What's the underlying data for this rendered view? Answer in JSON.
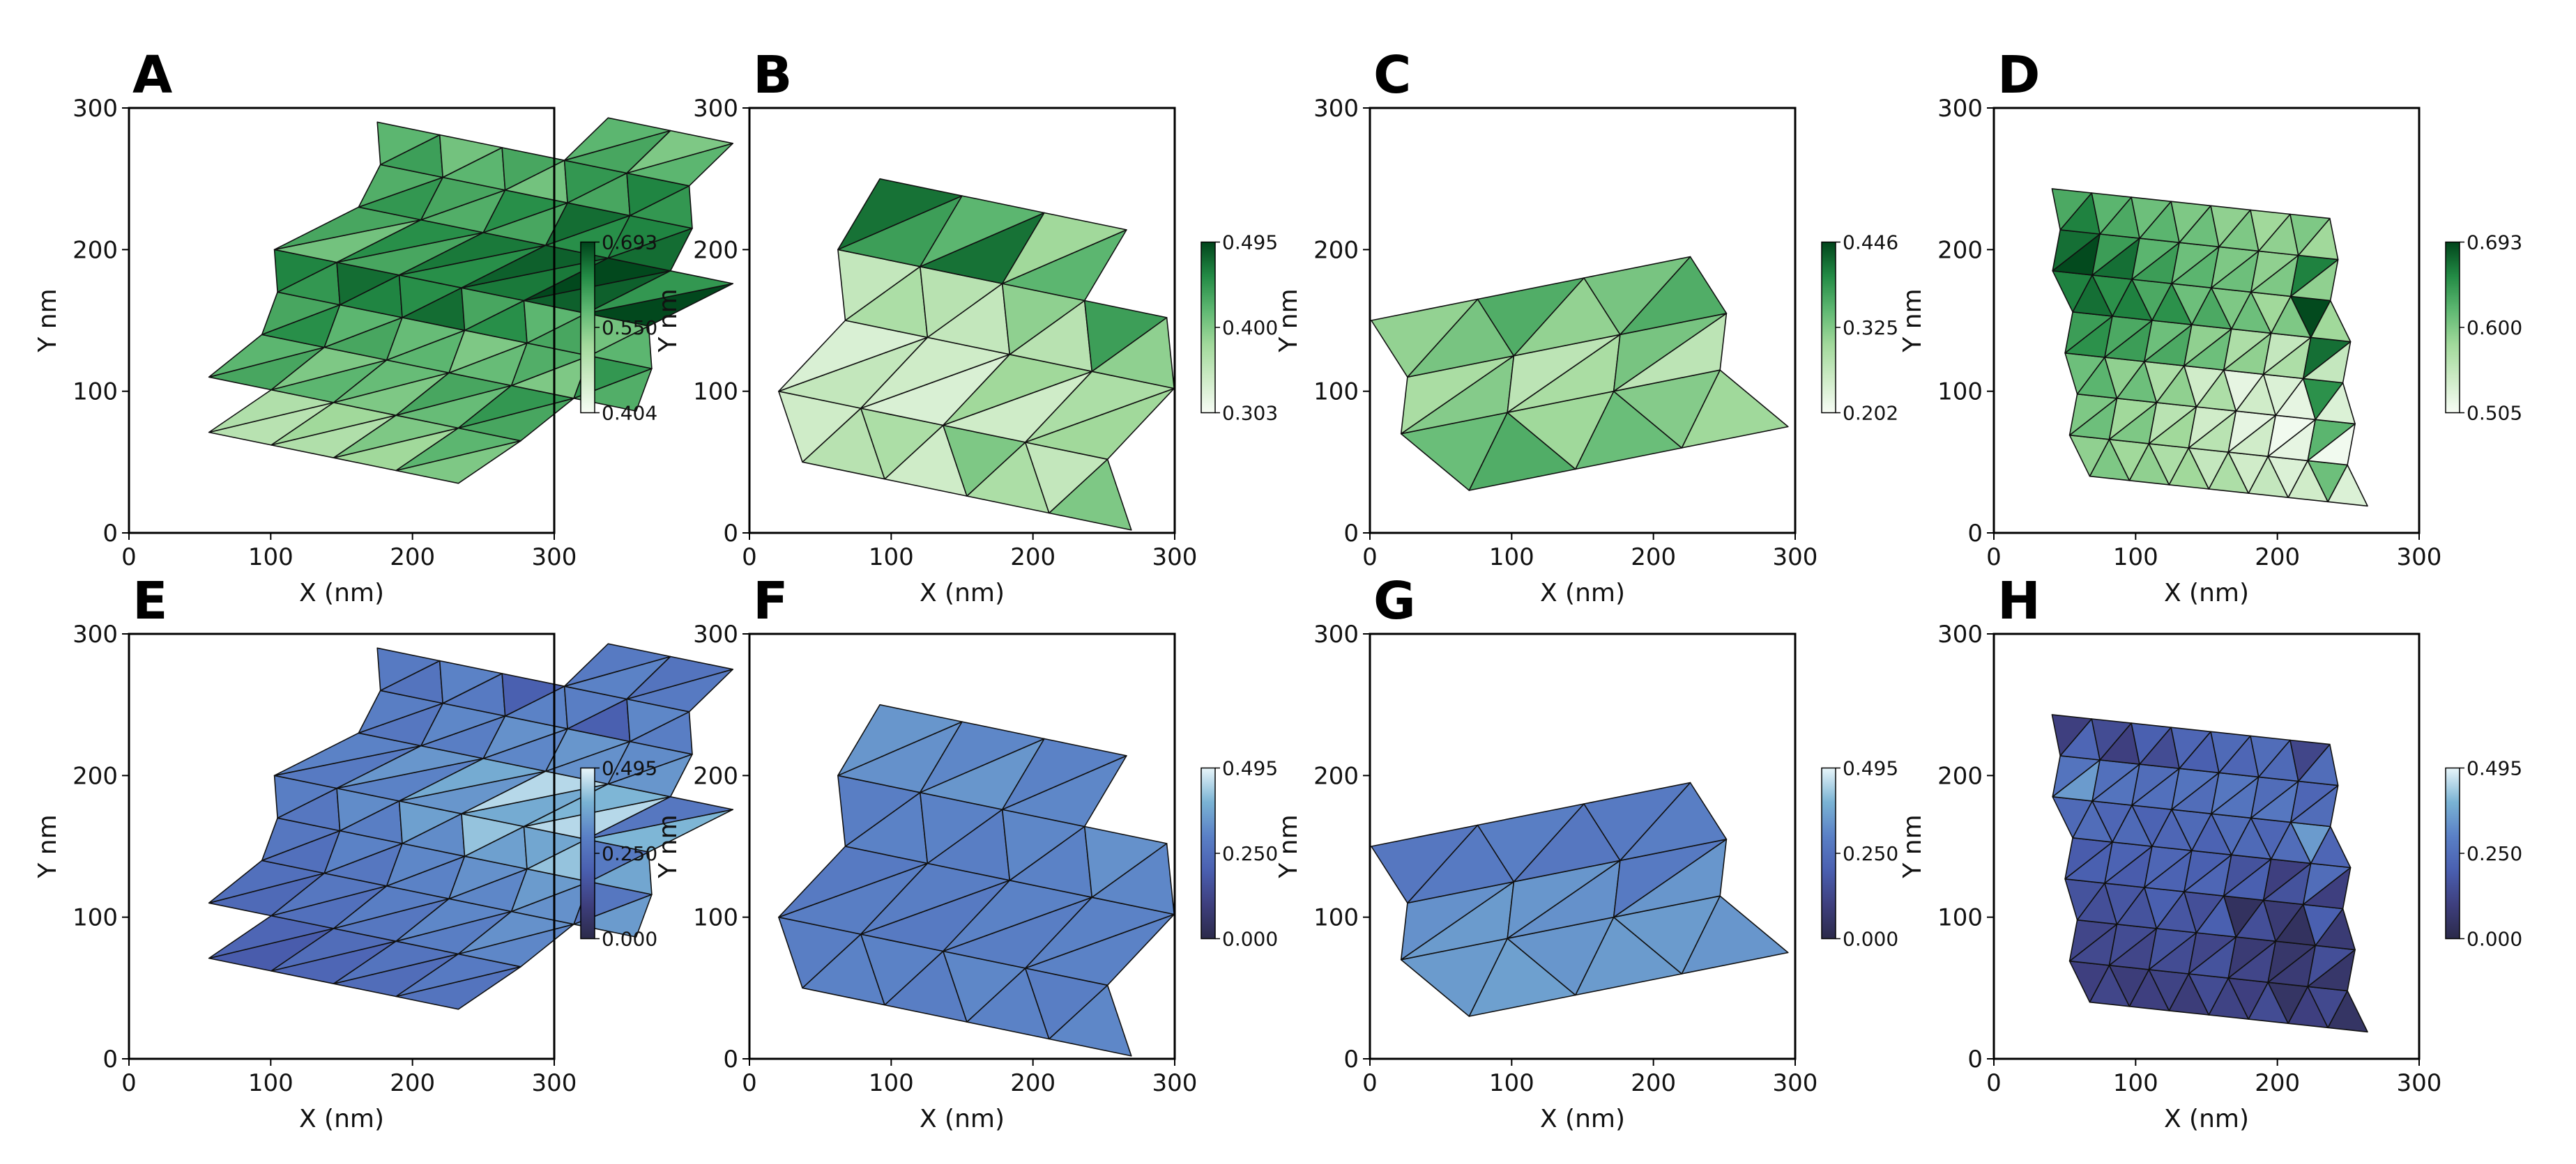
{
  "colors": {
    "green_map": [
      "#f7fcf5",
      "#cdebc6",
      "#a1d99b",
      "#5fb872",
      "#238b45",
      "#00441b"
    ],
    "blue_map": [
      "#2b2a4a",
      "#3e3f7e",
      "#4a5fb0",
      "#5a80c6",
      "#7ab3d4",
      "#e8f6fa"
    ],
    "edge": "#111111"
  },
  "chart_data": [
    {
      "panel": "A",
      "type": "heatmap",
      "xlabel": "X (nm)",
      "ylabel": "Y nm",
      "xlim": [
        0,
        300
      ],
      "ylim": [
        0,
        300
      ],
      "xticks": [
        "0",
        "100",
        "200",
        "300"
      ],
      "yticks": [
        "0",
        "100",
        "200",
        "300"
      ],
      "colorbar": {
        "ticks": [
          "0.404",
          "0.550",
          "0.693"
        ],
        "min": 0.404,
        "max": 0.693,
        "cmap": "green"
      },
      "mesh": {
        "origin": [
          30,
          80
        ],
        "ex": [
          44,
          -9
        ],
        "ey": [
          22,
          30
        ],
        "rows": 8,
        "cols": 6,
        "shear": [
          -0.4,
          0.1,
          0.45,
          0.2,
          -0.35,
          0.5,
          0.35,
          -0.2
        ],
        "skip": [
          [
            0,
            0
          ],
          [
            0,
            5
          ],
          [
            1,
            5
          ],
          [
            6,
            5
          ],
          [
            7,
            0
          ],
          [
            7,
            1
          ],
          [
            7,
            2
          ],
          [
            7,
            5
          ],
          [
            5,
            5
          ]
        ]
      },
      "values": [
        0.46,
        0.49,
        0.5,
        0.52,
        0.55,
        0.58,
        0.6,
        0.58,
        0.55,
        0.57,
        0.6,
        0.62,
        0.63,
        0.6,
        0.58,
        0.57,
        0.55,
        0.59,
        0.62,
        0.64,
        0.66,
        0.63,
        0.6,
        0.58,
        0.56,
        0.6,
        0.63,
        0.65,
        0.67,
        0.69,
        0.62,
        0.59,
        0.6,
        0.63,
        0.66,
        0.64,
        0.61,
        0.58,
        0.56,
        0.6,
        0.62,
        0.64,
        0.65,
        0.66,
        0.63,
        0.6,
        0.58,
        0.55
      ]
    },
    {
      "panel": "B",
      "type": "heatmap",
      "xlabel": "X (nm)",
      "ylabel": "Y nm",
      "xlim": [
        0,
        300
      ],
      "ylim": [
        0,
        300
      ],
      "xticks": [
        "0",
        "100",
        "200",
        "300"
      ],
      "yticks": [
        "0",
        "100",
        "200",
        "300"
      ],
      "colorbar": {
        "ticks": [
          "0.303",
          "0.400",
          "0.495"
        ],
        "min": 0.303,
        "max": 0.495,
        "cmap": "green"
      },
      "mesh": {
        "origin": [
          20,
          50
        ],
        "ex": [
          58,
          -12
        ],
        "ey": [
          18,
          50
        ],
        "rows": 4,
        "cols": 4,
        "shear": [
          0.3,
          -0.3,
          0.2,
          -0.2
        ],
        "skip": [
          [
            3,
            3
          ]
        ]
      },
      "values": [
        0.36,
        0.34,
        0.37,
        0.4,
        0.35,
        0.33,
        0.34,
        0.38,
        0.37,
        0.35,
        0.36,
        0.39,
        0.44,
        0.47,
        0.42,
        0.38,
        0.36,
        0.34,
        0.37,
        0.39,
        0.33,
        0.35,
        0.38,
        0.4,
        0.36,
        0.38,
        0.42,
        0.45,
        0.4,
        0.43,
        0.37,
        0.35
      ]
    },
    {
      "panel": "C",
      "type": "heatmap",
      "xlabel": "X (nm)",
      "ylabel": "Y nm",
      "xlim": [
        0,
        300
      ],
      "ylim": [
        0,
        300
      ],
      "xticks": [
        "0",
        "100",
        "200",
        "300"
      ],
      "yticks": [
        "0",
        "100",
        "200",
        "300"
      ],
      "colorbar": {
        "ticks": [
          "0.202",
          "0.325",
          "0.446"
        ],
        "min": 0.202,
        "max": 0.446,
        "cmap": "green"
      },
      "mesh": {
        "origin": [
          55,
          30
        ],
        "ex": [
          75,
          15
        ],
        "ey": [
          -18,
          40
        ],
        "rows": 3,
        "cols": 3,
        "shear": [
          0.2,
          -0.2,
          0.1
        ],
        "skip": []
      },
      "values": [
        0.36,
        0.34,
        0.3,
        0.32,
        0.29,
        0.27,
        0.33,
        0.31,
        0.36,
        0.33,
        0.3,
        0.28,
        0.31,
        0.29,
        0.34,
        0.32,
        0.3,
        0.28
      ]
    },
    {
      "panel": "D",
      "type": "heatmap",
      "xlabel": "X (nm)",
      "ylabel": "Y nm",
      "xlim": [
        0,
        300
      ],
      "ylim": [
        0,
        300
      ],
      "xticks": [
        "0",
        "100",
        "200",
        "300"
      ],
      "yticks": [
        "0",
        "100",
        "200",
        "300"
      ],
      "colorbar": {
        "ticks": [
          "0.505",
          "0.600",
          "0.693"
        ],
        "min": 0.505,
        "max": 0.693,
        "cmap": "green"
      },
      "mesh": {
        "origin": [
          62,
          40
        ],
        "ex": [
          28,
          -3
        ],
        "ey": [
          -3,
          29
        ],
        "rows": 7,
        "cols": 7,
        "shear": [
          0.2,
          -0.2,
          0.1,
          -0.1,
          0.2,
          -0.2,
          0.1
        ],
        "skip": []
      },
      "values": [
        0.6,
        0.59,
        0.58,
        0.57,
        0.55,
        0.54,
        0.53,
        0.61,
        0.6,
        0.58,
        0.56,
        0.54,
        0.52,
        0.51,
        0.62,
        0.61,
        0.59,
        0.57,
        0.54,
        0.52,
        0.53,
        0.65,
        0.64,
        0.63,
        0.61,
        0.59,
        0.57,
        0.55,
        0.67,
        0.66,
        0.65,
        0.63,
        0.61,
        0.6,
        0.58,
        0.69,
        0.67,
        0.64,
        0.62,
        0.61,
        0.6,
        0.59,
        0.66,
        0.63,
        0.62,
        0.61,
        0.6,
        0.59,
        0.58
      ]
    },
    {
      "panel": "E",
      "type": "heatmap",
      "xlabel": "X (nm)",
      "ylabel": "Y nm",
      "xlim": [
        0,
        300
      ],
      "ylim": [
        0,
        300
      ],
      "xticks": [
        "0",
        "100",
        "200",
        "300"
      ],
      "yticks": [
        "0",
        "100",
        "200",
        "300"
      ],
      "colorbar": {
        "ticks": [
          "0.000",
          "0.250",
          "0.495"
        ],
        "min": 0.0,
        "max": 0.495,
        "cmap": "blue"
      },
      "mesh": {
        "origin": [
          30,
          80
        ],
        "ex": [
          44,
          -9
        ],
        "ey": [
          22,
          30
        ],
        "rows": 8,
        "cols": 6,
        "shear": [
          -0.4,
          0.1,
          0.45,
          0.2,
          -0.35,
          0.5,
          0.35,
          -0.2
        ],
        "skip": [
          [
            0,
            0
          ],
          [
            0,
            5
          ],
          [
            1,
            5
          ],
          [
            6,
            5
          ],
          [
            7,
            0
          ],
          [
            7,
            1
          ],
          [
            7,
            2
          ],
          [
            7,
            5
          ],
          [
            5,
            5
          ]
        ]
      },
      "values": [
        0.16,
        0.19,
        0.22,
        0.24,
        0.26,
        0.28,
        0.23,
        0.25,
        0.27,
        0.29,
        0.31,
        0.33,
        0.25,
        0.27,
        0.3,
        0.31,
        0.33,
        0.35,
        0.27,
        0.29,
        0.32,
        0.36,
        0.42,
        0.37,
        0.28,
        0.3,
        0.34,
        0.38,
        0.45,
        0.4,
        0.27,
        0.29,
        0.31,
        0.33,
        0.34,
        0.32,
        0.26,
        0.28,
        0.3,
        0.2,
        0.29,
        0.31,
        0.27,
        0.29,
        0.31,
        0.3,
        0.28,
        0.26
      ]
    },
    {
      "panel": "F",
      "type": "heatmap",
      "xlabel": "X (nm)",
      "ylabel": "Y nm",
      "xlim": [
        0,
        300
      ],
      "ylim": [
        0,
        300
      ],
      "xticks": [
        "0",
        "100",
        "200",
        "300"
      ],
      "yticks": [
        "0",
        "100",
        "200",
        "300"
      ],
      "colorbar": {
        "ticks": [
          "0.000",
          "0.250",
          "0.495"
        ],
        "min": 0.0,
        "max": 0.495,
        "cmap": "blue"
      },
      "mesh": {
        "origin": [
          20,
          50
        ],
        "ex": [
          58,
          -12
        ],
        "ey": [
          18,
          50
        ],
        "rows": 4,
        "cols": 4,
        "shear": [
          0.3,
          -0.3,
          0.2,
          -0.2
        ],
        "skip": [
          [
            3,
            3
          ]
        ]
      },
      "values": [
        0.3,
        0.29,
        0.3,
        0.31,
        0.29,
        0.28,
        0.29,
        0.3,
        0.3,
        0.29,
        0.3,
        0.31,
        0.33,
        0.34,
        0.31,
        0.3,
        0.29,
        0.28,
        0.3,
        0.31,
        0.28,
        0.29,
        0.3,
        0.31,
        0.29,
        0.3,
        0.32,
        0.33,
        0.31,
        0.32,
        0.3,
        0.29
      ]
    },
    {
      "panel": "G",
      "type": "heatmap",
      "xlabel": "X (nm)",
      "ylabel": "Y nm",
      "xlim": [
        0,
        300
      ],
      "ylim": [
        0,
        300
      ],
      "xticks": [
        "0",
        "100",
        "200",
        "300"
      ],
      "yticks": [
        "0",
        "100",
        "200",
        "300"
      ],
      "colorbar": {
        "ticks": [
          "0.000",
          "0.250",
          "0.495"
        ],
        "min": 0.0,
        "max": 0.495,
        "cmap": "blue"
      },
      "mesh": {
        "origin": [
          55,
          30
        ],
        "ex": [
          75,
          15
        ],
        "ey": [
          -18,
          40
        ],
        "rows": 3,
        "cols": 3,
        "shear": [
          0.2,
          -0.2,
          0.1
        ],
        "skip": []
      },
      "values": [
        0.36,
        0.35,
        0.34,
        0.35,
        0.33,
        0.34,
        0.28,
        0.27,
        0.29,
        0.28,
        0.27,
        0.28,
        0.36,
        0.37,
        0.38,
        0.39,
        0.4,
        0.41
      ]
    },
    {
      "panel": "H",
      "type": "heatmap",
      "xlabel": "X (nm)",
      "ylabel": "Y nm",
      "xlim": [
        0,
        300
      ],
      "ylim": [
        0,
        300
      ],
      "xticks": [
        "0",
        "100",
        "200",
        "300"
      ],
      "yticks": [
        "0",
        "100",
        "200",
        "300"
      ],
      "colorbar": {
        "ticks": [
          "0.000",
          "0.250",
          "0.495"
        ],
        "min": 0.0,
        "max": 0.495,
        "cmap": "blue"
      },
      "mesh": {
        "origin": [
          62,
          40
        ],
        "ex": [
          28,
          -3
        ],
        "ey": [
          -3,
          29
        ],
        "rows": 7,
        "cols": 7,
        "shear": [
          0.2,
          -0.2,
          0.1,
          -0.1,
          0.2,
          -0.2,
          0.1
        ],
        "skip": []
      },
      "values": [
        0.12,
        0.1,
        0.09,
        0.11,
        0.14,
        0.1,
        0.05,
        0.13,
        0.12,
        0.14,
        0.16,
        0.12,
        0.08,
        0.06,
        0.15,
        0.16,
        0.17,
        0.2,
        0.15,
        0.04,
        0.08,
        0.2,
        0.19,
        0.21,
        0.22,
        0.2,
        0.16,
        0.1,
        0.24,
        0.23,
        0.22,
        0.21,
        0.23,
        0.24,
        0.22,
        0.35,
        0.26,
        0.25,
        0.24,
        0.26,
        0.27,
        0.24,
        0.22,
        0.1,
        0.14,
        0.2,
        0.22,
        0.23,
        0.24
      ]
    }
  ]
}
